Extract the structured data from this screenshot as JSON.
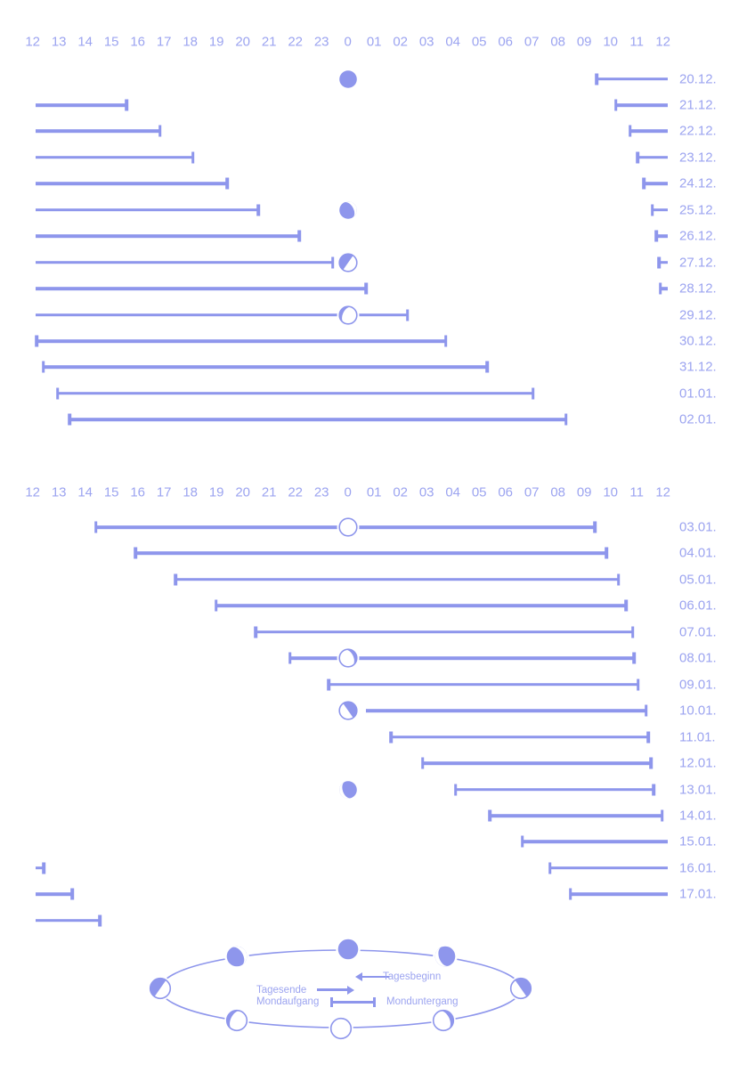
{
  "colors": {
    "bar": "#8e96ec",
    "text": "#9ca4f0"
  },
  "legend": {
    "day_begin_label": "Tagesbeginn",
    "day_end_label": "Tagesende",
    "moonrise_label": "Mondaufgang",
    "moonset_label": "Monduntergang",
    "phase_cycle": [
      "new",
      "waning-crescent",
      "last-quarter",
      "waning-gibbous",
      "full",
      "waxing-gibbous",
      "first-quarter",
      "waxing-crescent"
    ]
  },
  "chart_data": {
    "type": "bar",
    "description": "Moon visibility intervals per date, plotted noon-to-noon; 12 = noon, 24 = midnight (label 0), 36 = next noon. Ticks: left tick = Mondaufgang (moonrise), right tick = Monduntergang (moonset). Moon phase icons drawn at midnight.",
    "axis_range": [
      12,
      36
    ],
    "axis_hour_labels": [
      "12",
      "13",
      "14",
      "15",
      "16",
      "17",
      "18",
      "19",
      "20",
      "21",
      "22",
      "23",
      "0",
      "01",
      "02",
      "03",
      "04",
      "05",
      "06",
      "07",
      "08",
      "09",
      "10",
      "11",
      "12"
    ],
    "panels": [
      {
        "rows": [
          {
            "date": "20.12.",
            "moon_phase": "new",
            "segments": [
              {
                "from": 33.47,
                "to": 36.17,
                "tick_start": true,
                "tick_end": false
              }
            ]
          },
          {
            "date": "21.12.",
            "moon_phase": null,
            "segments": [
              {
                "from": 12.1,
                "to": 15.57,
                "tick_start": false,
                "tick_end": true
              },
              {
                "from": 34.2,
                "to": 36.17,
                "tick_start": true,
                "tick_end": false
              }
            ]
          },
          {
            "date": "22.12.",
            "moon_phase": null,
            "segments": [
              {
                "from": 12.1,
                "to": 16.85,
                "tick_start": false,
                "tick_end": true
              },
              {
                "from": 34.75,
                "to": 36.17,
                "tick_start": true,
                "tick_end": false
              }
            ]
          },
          {
            "date": "23.12.",
            "moon_phase": null,
            "segments": [
              {
                "from": 12.1,
                "to": 18.1,
                "tick_start": false,
                "tick_end": true
              },
              {
                "from": 35.03,
                "to": 36.17,
                "tick_start": true,
                "tick_end": false
              }
            ]
          },
          {
            "date": "24.12.",
            "moon_phase": null,
            "segments": [
              {
                "from": 12.1,
                "to": 19.4,
                "tick_start": false,
                "tick_end": true
              },
              {
                "from": 35.27,
                "to": 36.17,
                "tick_start": true,
                "tick_end": false
              }
            ]
          },
          {
            "date": "25.12.",
            "moon_phase": "waxing-crescent",
            "segments": [
              {
                "from": 12.1,
                "to": 20.6,
                "tick_start": false,
                "tick_end": true
              },
              {
                "from": 35.6,
                "to": 36.17,
                "tick_start": true,
                "tick_end": false
              }
            ]
          },
          {
            "date": "26.12.",
            "moon_phase": null,
            "segments": [
              {
                "from": 12.1,
                "to": 22.15,
                "tick_start": false,
                "tick_end": true
              },
              {
                "from": 35.75,
                "to": 36.17,
                "tick_start": true,
                "tick_end": false
              }
            ]
          },
          {
            "date": "27.12.",
            "moon_phase": "first-quarter",
            "segments": [
              {
                "from": 12.1,
                "to": 23.43,
                "tick_start": false,
                "tick_end": true
              },
              {
                "from": 35.85,
                "to": 36.17,
                "tick_start": true,
                "tick_end": false
              }
            ]
          },
          {
            "date": "28.12.",
            "moon_phase": null,
            "segments": [
              {
                "from": 12.1,
                "to": 24.7,
                "tick_start": false,
                "tick_end": true
              },
              {
                "from": 35.9,
                "to": 36.17,
                "tick_start": true,
                "tick_end": false
              }
            ]
          },
          {
            "date": "29.12.",
            "moon_phase": "waxing-gibbous",
            "segments": [
              {
                "from": 12.1,
                "to": 26.27,
                "tick_start": false,
                "tick_end": true
              }
            ]
          },
          {
            "date": "30.12.",
            "moon_phase": null,
            "segments": [
              {
                "from": 12.15,
                "to": 27.73,
                "tick_start": true,
                "tick_end": true
              }
            ]
          },
          {
            "date": "31.12.",
            "moon_phase": null,
            "segments": [
              {
                "from": 12.4,
                "to": 29.3,
                "tick_start": true,
                "tick_end": true
              }
            ]
          },
          {
            "date": "01.01.",
            "moon_phase": null,
            "segments": [
              {
                "from": 12.95,
                "to": 31.05,
                "tick_start": true,
                "tick_end": true
              }
            ]
          },
          {
            "date": "02.01.",
            "moon_phase": null,
            "segments": [
              {
                "from": 13.4,
                "to": 32.3,
                "tick_start": true,
                "tick_end": true
              }
            ]
          }
        ]
      },
      {
        "rows": [
          {
            "date": "03.01.",
            "moon_phase": "full",
            "segments": [
              {
                "from": 14.4,
                "to": 33.4,
                "tick_start": true,
                "tick_end": true
              }
            ]
          },
          {
            "date": "04.01.",
            "moon_phase": null,
            "segments": [
              {
                "from": 15.92,
                "to": 33.85,
                "tick_start": true,
                "tick_end": true
              }
            ]
          },
          {
            "date": "05.01.",
            "moon_phase": null,
            "segments": [
              {
                "from": 17.45,
                "to": 34.3,
                "tick_start": true,
                "tick_end": true
              }
            ]
          },
          {
            "date": "06.01.",
            "moon_phase": null,
            "segments": [
              {
                "from": 18.98,
                "to": 34.6,
                "tick_start": true,
                "tick_end": true
              }
            ]
          },
          {
            "date": "07.01.",
            "moon_phase": null,
            "segments": [
              {
                "from": 20.5,
                "to": 34.85,
                "tick_start": true,
                "tick_end": true
              }
            ]
          },
          {
            "date": "08.01.",
            "moon_phase": "waning-gibbous",
            "segments": [
              {
                "from": 21.8,
                "to": 34.9,
                "tick_start": true,
                "tick_end": true
              }
            ]
          },
          {
            "date": "09.01.",
            "moon_phase": null,
            "segments": [
              {
                "from": 23.28,
                "to": 35.05,
                "tick_start": true,
                "tick_end": true
              }
            ]
          },
          {
            "date": "10.01.",
            "moon_phase": "last-quarter",
            "segments": [
              {
                "from": 24.7,
                "to": 35.35,
                "tick_start": false,
                "tick_end": true
              }
            ]
          },
          {
            "date": "11.01.",
            "moon_phase": null,
            "segments": [
              {
                "from": 25.65,
                "to": 35.45,
                "tick_start": true,
                "tick_end": true
              }
            ]
          },
          {
            "date": "12.01.",
            "moon_phase": null,
            "segments": [
              {
                "from": 26.85,
                "to": 35.55,
                "tick_start": true,
                "tick_end": true
              }
            ]
          },
          {
            "date": "13.01.",
            "moon_phase": "waning-crescent",
            "segments": [
              {
                "from": 28.1,
                "to": 35.65,
                "tick_start": true,
                "tick_end": true
              }
            ]
          },
          {
            "date": "14.01.",
            "moon_phase": null,
            "segments": [
              {
                "from": 29.4,
                "to": 35.97,
                "tick_start": true,
                "tick_end": true
              }
            ]
          },
          {
            "date": "15.01.",
            "moon_phase": null,
            "segments": [
              {
                "from": 30.65,
                "to": 36.17,
                "tick_start": true,
                "tick_end": false
              }
            ]
          },
          {
            "date": "16.01.",
            "moon_phase": null,
            "segments": [
              {
                "from": 12.1,
                "to": 12.42,
                "tick_start": false,
                "tick_end": true
              },
              {
                "from": 31.7,
                "to": 36.17,
                "tick_start": true,
                "tick_end": false
              }
            ]
          },
          {
            "date": "17.01.",
            "moon_phase": null,
            "segments": [
              {
                "from": 12.1,
                "to": 13.5,
                "tick_start": false,
                "tick_end": true
              },
              {
                "from": 32.47,
                "to": 36.17,
                "tick_start": true,
                "tick_end": false
              }
            ]
          },
          {
            "date": "",
            "moon_phase": null,
            "segments": [
              {
                "from": 12.1,
                "to": 14.55,
                "tick_start": false,
                "tick_end": true
              }
            ]
          }
        ]
      }
    ]
  }
}
